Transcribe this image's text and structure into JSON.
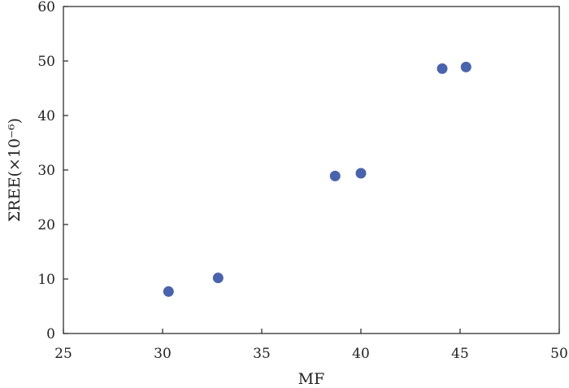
{
  "chart_data": {
    "type": "scatter",
    "title": "",
    "xlabel": "MF",
    "ylabel": "ΣREE(×10⁻⁶)",
    "xlim": [
      25,
      50
    ],
    "ylim": [
      0,
      60
    ],
    "x_ticks": [
      25,
      30,
      35,
      40,
      45,
      50
    ],
    "y_ticks": [
      0,
      10,
      20,
      30,
      40,
      50,
      60
    ],
    "grid": false,
    "series": [
      {
        "points": [
          {
            "x": 30.3,
            "y": 7.7
          },
          {
            "x": 32.8,
            "y": 10.2
          },
          {
            "x": 38.7,
            "y": 28.9
          },
          {
            "x": 40.0,
            "y": 29.4
          },
          {
            "x": 44.1,
            "y": 48.6
          },
          {
            "x": 45.3,
            "y": 48.9
          }
        ]
      }
    ],
    "colors": {
      "marker": "#4a63ad",
      "axis": "#222222"
    }
  }
}
